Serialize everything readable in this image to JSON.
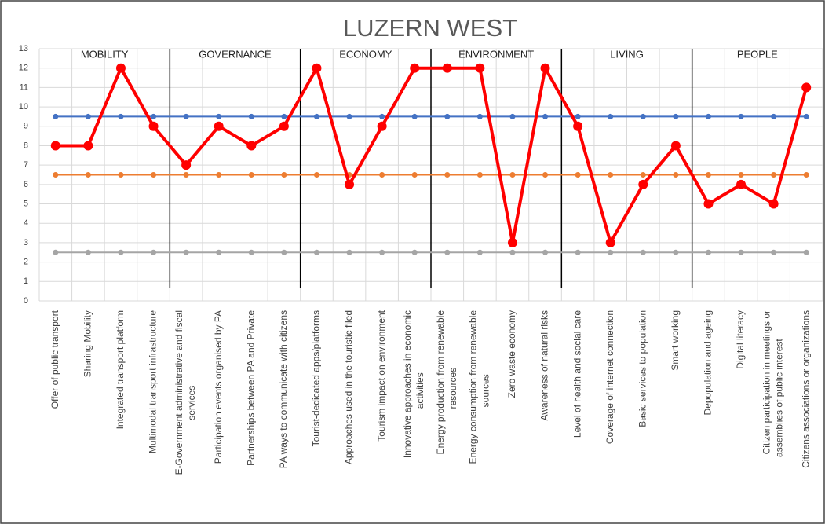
{
  "chart_data": {
    "type": "line",
    "title": "LUZERN WEST",
    "groups": [
      "MOBILITY",
      "GOVERNANCE",
      "ECONOMY",
      "ENVIRONMENT",
      "LIVING",
      "PEOPLE"
    ],
    "categories": [
      "Offer of public transport",
      "Sharing Mobility",
      "Integrated transport platform",
      "Multimodal transport infrastructure",
      "E-Government administrative and fiscal services",
      "Participation events organised by PA",
      "Partnerships between PA and Private",
      "PA ways to communicate with citizens",
      "Tourist-dedicated apps/platforms",
      "Approaches used in the touristic filed",
      "Tourism impact on environment",
      "Innovative approaches in economic activities",
      "Energy production from renewable resources",
      "Energy consumption from renewable sources",
      "Zero waste economy",
      "Awareness of natural risks",
      "Level of health and social care",
      "Coverage of internet connection",
      "Basic services to population",
      "Smart working",
      "Depopulation and ageing",
      "Digital literacy",
      "Citizen participation in meetings or assemblies of public interest",
      "Citizens associations or organizations"
    ],
    "series": [
      {
        "color": "#4472c4",
        "values": [
          9.5,
          9.5,
          9.5,
          9.5,
          9.5,
          9.5,
          9.5,
          9.5,
          9.5,
          9.5,
          9.5,
          9.5,
          9.5,
          9.5,
          9.5,
          9.5,
          9.5,
          9.5,
          9.5,
          9.5,
          9.5,
          9.5,
          9.5,
          9.5
        ]
      },
      {
        "color": "#ed7d31",
        "values": [
          6.5,
          6.5,
          6.5,
          6.5,
          6.5,
          6.5,
          6.5,
          6.5,
          6.5,
          6.5,
          6.5,
          6.5,
          6.5,
          6.5,
          6.5,
          6.5,
          6.5,
          6.5,
          6.5,
          6.5,
          6.5,
          6.5,
          6.5,
          6.5
        ]
      },
      {
        "color": "#a5a5a5",
        "values": [
          2.5,
          2.5,
          2.5,
          2.5,
          2.5,
          2.5,
          2.5,
          2.5,
          2.5,
          2.5,
          2.5,
          2.5,
          2.5,
          2.5,
          2.5,
          2.5,
          2.5,
          2.5,
          2.5,
          2.5,
          2.5,
          2.5,
          2.5,
          2.5
        ]
      },
      {
        "color": "#ff0000",
        "values": [
          8,
          8,
          12,
          9,
          7,
          9,
          8,
          9,
          12,
          6,
          9,
          12,
          12,
          12,
          3,
          12,
          9,
          3,
          6,
          8,
          5,
          6,
          5,
          11
        ]
      }
    ],
    "ylim": [
      0,
      13
    ],
    "yticks": [
      0,
      1,
      2,
      3,
      4,
      5,
      6,
      7,
      8,
      9,
      10,
      11,
      12,
      13
    ],
    "grid": true
  }
}
